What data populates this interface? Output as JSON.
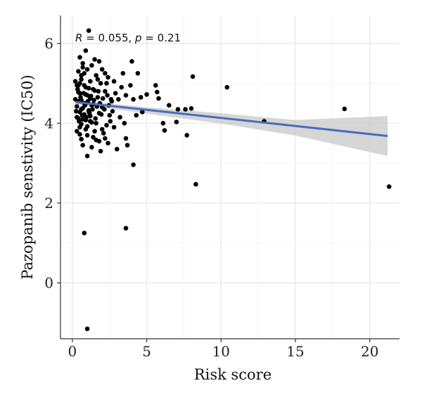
{
  "chart_data": {
    "type": "scatter",
    "xlabel": "Risk score",
    "ylabel": "Pazopanib senstivity (IC50)",
    "xlim": [
      -0.8,
      22.0
    ],
    "ylim": [
      -1.4,
      6.7
    ],
    "xticks": [
      0,
      5,
      10,
      15,
      20
    ],
    "yticks": [
      0,
      2,
      4,
      6
    ],
    "xtick_labels": [
      "0",
      "5",
      "10",
      "15",
      "20"
    ],
    "ytick_labels": [
      "0",
      "2",
      "4",
      "6"
    ],
    "grid": true,
    "annotation": {
      "r_symbol": "R",
      "r_text": " = 0.055, ",
      "p_symbol": "p",
      "p_text": " = 0.21"
    },
    "point_color": "#000000",
    "line_color": "#4a6bbd",
    "band_color": "#cccccc",
    "regression": {
      "x": [
        0.2,
        21.2
      ],
      "y": [
        4.53,
        3.68
      ]
    },
    "confidence_band": {
      "x": [
        0.2,
        2,
        5,
        10,
        15,
        21.2
      ],
      "lower": [
        4.47,
        4.4,
        4.24,
        3.99,
        3.69,
        3.18
      ],
      "upper": [
        4.59,
        4.51,
        4.4,
        4.25,
        4.08,
        4.18
      ]
    },
    "points": [
      [
        1.1,
        6.32
      ],
      [
        0.9,
        5.82
      ],
      [
        0.5,
        5.65
      ],
      [
        1.5,
        5.6
      ],
      [
        0.7,
        5.5
      ],
      [
        1.3,
        5.45
      ],
      [
        2.0,
        5.35
      ],
      [
        0.4,
        5.3
      ],
      [
        0.8,
        5.25
      ],
      [
        1.6,
        5.2
      ],
      [
        2.4,
        5.15
      ],
      [
        0.6,
        5.1
      ],
      [
        1.2,
        5.05
      ],
      [
        1.9,
        5.0
      ],
      [
        0.3,
        4.95
      ],
      [
        0.9,
        4.9
      ],
      [
        1.4,
        4.85
      ],
      [
        2.2,
        4.8
      ],
      [
        0.5,
        4.75
      ],
      [
        1.0,
        4.7
      ],
      [
        1.7,
        4.65
      ],
      [
        2.6,
        4.6
      ],
      [
        0.4,
        4.55
      ],
      [
        0.8,
        4.5
      ],
      [
        1.3,
        4.45
      ],
      [
        2.0,
        4.4
      ],
      [
        0.6,
        4.35
      ],
      [
        1.1,
        4.3
      ],
      [
        1.8,
        4.25
      ],
      [
        2.5,
        4.2
      ],
      [
        0.3,
        4.15
      ],
      [
        0.7,
        4.1
      ],
      [
        1.2,
        4.05
      ],
      [
        1.6,
        4.0
      ],
      [
        2.3,
        3.95
      ],
      [
        0.5,
        3.9
      ],
      [
        0.9,
        3.85
      ],
      [
        1.5,
        3.8
      ],
      [
        2.1,
        3.75
      ],
      [
        1.0,
        3.7
      ],
      [
        1.4,
        3.65
      ],
      [
        0.6,
        3.6
      ],
      [
        1.8,
        3.55
      ],
      [
        2.4,
        3.5
      ],
      [
        0.7,
        3.45
      ],
      [
        1.3,
        3.4
      ],
      [
        0.5,
        5.0
      ],
      [
        0.8,
        4.95
      ],
      [
        1.1,
        4.88
      ],
      [
        1.5,
        4.82
      ],
      [
        0.4,
        4.78
      ],
      [
        0.9,
        4.72
      ],
      [
        1.2,
        4.62
      ],
      [
        0.6,
        4.58
      ],
      [
        1.0,
        4.52
      ],
      [
        1.4,
        4.48
      ],
      [
        0.3,
        4.42
      ],
      [
        0.7,
        4.38
      ],
      [
        1.1,
        4.32
      ],
      [
        0.5,
        4.28
      ],
      [
        0.8,
        4.22
      ],
      [
        1.2,
        4.18
      ],
      [
        0.4,
        4.12
      ],
      [
        0.9,
        4.08
      ],
      [
        1.3,
        4.02
      ],
      [
        0.6,
        3.98
      ],
      [
        1.0,
        3.92
      ],
      [
        0.7,
        5.4
      ],
      [
        1.0,
        5.35
      ],
      [
        1.8,
        5.55
      ],
      [
        2.2,
        5.25
      ],
      [
        2.8,
        5.05
      ],
      [
        2.9,
        4.75
      ],
      [
        3.1,
        4.6
      ],
      [
        2.7,
        4.3
      ],
      [
        3.2,
        4.15
      ],
      [
        2.8,
        3.9
      ],
      [
        3.0,
        3.35
      ],
      [
        1.9,
        3.3
      ],
      [
        1.0,
        3.18
      ],
      [
        2.2,
        3.62
      ],
      [
        3.3,
        4.9
      ],
      [
        3.4,
        5.25
      ],
      [
        3.6,
        4.7
      ],
      [
        3.5,
        4.0
      ],
      [
        3.6,
        3.62
      ],
      [
        3.7,
        3.45
      ],
      [
        3.9,
        4.95
      ],
      [
        4.0,
        5.55
      ],
      [
        4.1,
        4.6
      ],
      [
        4.3,
        4.2
      ],
      [
        4.4,
        5.25
      ],
      [
        4.6,
        4.65
      ],
      [
        4.7,
        4.28
      ],
      [
        5.0,
        4.72
      ],
      [
        5.6,
        4.95
      ],
      [
        5.7,
        4.78
      ],
      [
        5.8,
        4.62
      ],
      [
        6.1,
        4.0
      ],
      [
        6.2,
        3.82
      ],
      [
        6.5,
        4.45
      ],
      [
        7.0,
        4.03
      ],
      [
        7.1,
        4.35
      ],
      [
        7.6,
        4.35
      ],
      [
        7.7,
        3.7
      ],
      [
        8.1,
        5.17
      ],
      [
        8.0,
        4.37
      ],
      [
        4.1,
        2.96
      ],
      [
        8.3,
        2.47
      ],
      [
        10.4,
        4.9
      ],
      [
        12.9,
        4.05
      ],
      [
        18.3,
        4.36
      ],
      [
        21.3,
        2.41
      ],
      [
        0.8,
        1.25
      ],
      [
        3.6,
        1.37
      ],
      [
        1.0,
        -1.15
      ],
      [
        0.2,
        4.6
      ],
      [
        0.25,
        4.3
      ],
      [
        0.35,
        4.85
      ],
      [
        0.45,
        4.05
      ],
      [
        0.55,
        4.65
      ],
      [
        0.65,
        4.2
      ],
      [
        0.75,
        4.75
      ],
      [
        0.85,
        4.45
      ],
      [
        0.95,
        4.15
      ],
      [
        1.05,
        4.55
      ],
      [
        1.15,
        4.25
      ],
      [
        1.25,
        4.68
      ],
      [
        1.35,
        4.35
      ],
      [
        1.45,
        4.58
      ],
      [
        1.55,
        4.12
      ],
      [
        1.65,
        4.42
      ],
      [
        1.75,
        4.8
      ],
      [
        1.85,
        4.5
      ],
      [
        1.95,
        4.22
      ],
      [
        2.05,
        4.62
      ],
      [
        2.15,
        4.35
      ],
      [
        2.35,
        4.7
      ],
      [
        2.45,
        4.45
      ],
      [
        2.55,
        4.05
      ],
      [
        2.65,
        4.55
      ],
      [
        0.2,
        5.05
      ],
      [
        0.3,
        3.8
      ],
      [
        0.5,
        3.72
      ],
      [
        0.6,
        5.2
      ],
      [
        0.4,
        4.95
      ],
      [
        1.6,
        3.58
      ],
      [
        1.7,
        5.1
      ],
      [
        2.0,
        3.85
      ],
      [
        2.3,
        5.0
      ]
    ]
  }
}
